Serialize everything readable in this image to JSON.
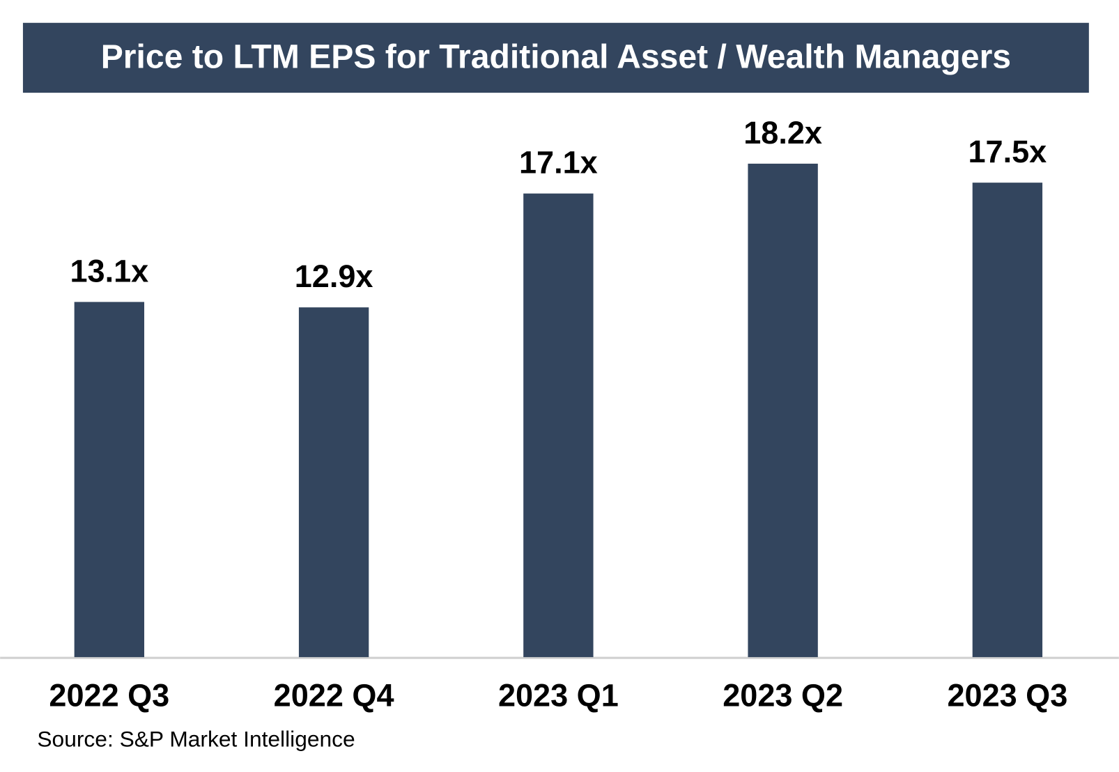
{
  "chart_data": {
    "type": "bar",
    "title": "Price to LTM EPS for Traditional Asset / Wealth Managers",
    "categories": [
      "2022 Q3",
      "2022 Q4",
      "2023 Q1",
      "2023 Q2",
      "2023 Q3"
    ],
    "values": [
      13.1,
      12.9,
      17.1,
      18.2,
      17.5
    ],
    "value_labels": [
      "13.1x",
      "12.9x",
      "17.1x",
      "18.2x",
      "17.5x"
    ],
    "color": "#33455e",
    "source": "Source: S&P Market Intelligence"
  }
}
